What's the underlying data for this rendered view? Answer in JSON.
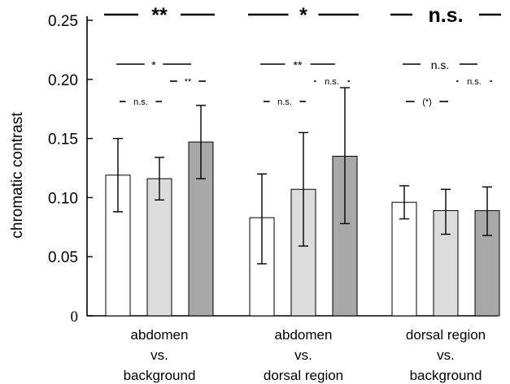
{
  "chart_data": {
    "type": "bar",
    "title": "",
    "xlabel": "",
    "ylabel": "chromatic contrast",
    "ylim": [
      0,
      0.25
    ],
    "yticks": [
      "0",
      "0.05",
      "0.10",
      "0.15",
      "0.20",
      "0.25"
    ],
    "grid": false,
    "categories": [
      [
        "abdomen",
        "vs.",
        "background"
      ],
      [
        "abdomen",
        "vs.",
        "dorsal region"
      ],
      [
        "dorsal region",
        "vs.",
        "background"
      ]
    ],
    "series": [
      {
        "color": "#ffffff",
        "values": [
          0.119,
          0.083,
          0.096
        ],
        "err_low": [
          0.088,
          0.044,
          0.082
        ],
        "err_high": [
          0.15,
          0.12,
          0.11
        ]
      },
      {
        "color": "#dcdcdc",
        "values": [
          0.116,
          0.107,
          0.089
        ],
        "err_low": [
          0.098,
          0.059,
          0.069
        ],
        "err_high": [
          0.134,
          0.155,
          0.107
        ]
      },
      {
        "color": "#a8a8a8",
        "values": [
          0.147,
          0.135,
          0.089
        ],
        "err_low": [
          0.116,
          0.078,
          0.068
        ],
        "err_high": [
          0.178,
          0.193,
          0.109
        ]
      }
    ],
    "significance": [
      [
        {
          "from": 0,
          "to": 2,
          "label": "**",
          "level": "top"
        },
        {
          "from": 0,
          "to": 1,
          "label": "*",
          "level": "mid"
        },
        {
          "from": 1,
          "to": 2,
          "label": "**",
          "level": "low"
        },
        {
          "from": 0,
          "to": 1,
          "label": "n.s.",
          "level": "bottom"
        }
      ],
      [
        {
          "from": 0,
          "to": 2,
          "label": "*",
          "level": "top"
        },
        {
          "from": 0,
          "to": 1,
          "label": "**",
          "level": "mid"
        },
        {
          "from": 1,
          "to": 2,
          "label": "n.s.",
          "level": "low"
        },
        {
          "from": 0,
          "to": 1,
          "label": "n.s.",
          "level": "bottom"
        }
      ],
      [
        {
          "from": 0,
          "to": 2,
          "label": "n.s.",
          "level": "top"
        },
        {
          "from": 0,
          "to": 1,
          "label": "n.s.",
          "level": "mid"
        },
        {
          "from": 1,
          "to": 2,
          "label": "n.s.",
          "level": "low"
        },
        {
          "from": 0,
          "to": 1,
          "label": "(*)",
          "level": "bottom"
        }
      ]
    ]
  }
}
